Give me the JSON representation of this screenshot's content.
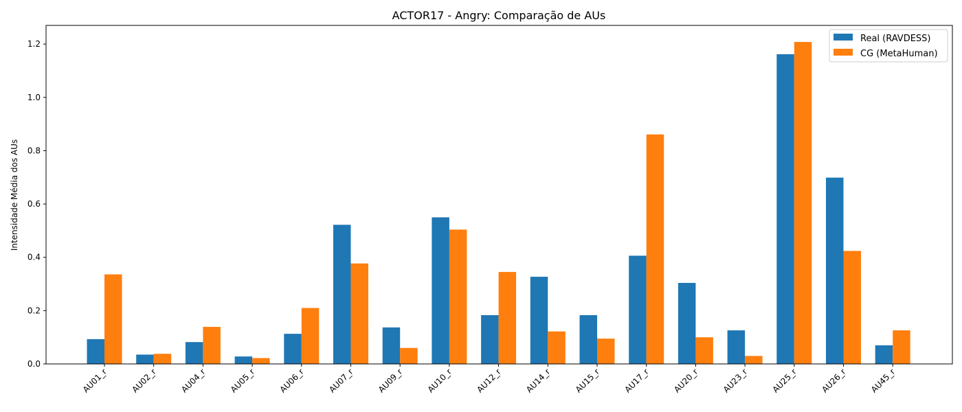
{
  "chart_data": {
    "type": "bar",
    "title": "ACTOR17 - Angry: Comparação de AUs",
    "xlabel": "",
    "ylabel": "Intensidade Média dos AUs",
    "categories": [
      "AU01_r",
      "AU02_r",
      "AU04_r",
      "AU05_r",
      "AU06_r",
      "AU07_r",
      "AU09_r",
      "AU10_r",
      "AU12_r",
      "AU14_r",
      "AU15_r",
      "AU17_r",
      "AU20_r",
      "AU23_r",
      "AU25_r",
      "AU26_r",
      "AU45_r"
    ],
    "series": [
      {
        "name": "Real (RAVDESS)",
        "color": "#1f77b4",
        "values": [
          0.093,
          0.035,
          0.082,
          0.028,
          0.113,
          0.522,
          0.137,
          0.55,
          0.183,
          0.327,
          0.183,
          0.406,
          0.304,
          0.126,
          1.162,
          0.699,
          0.07
        ]
      },
      {
        "name": "CG (MetaHuman)",
        "color": "#ff7f0e",
        "values": [
          0.336,
          0.038,
          0.139,
          0.022,
          0.21,
          0.377,
          0.06,
          0.504,
          0.345,
          0.122,
          0.095,
          0.861,
          0.1,
          0.03,
          1.208,
          0.424,
          0.126
        ]
      }
    ],
    "ylim": [
      0,
      1.27
    ],
    "yticks": [
      "0.0",
      "0.2",
      "0.4",
      "0.6",
      "0.8",
      "1.0",
      "1.2"
    ],
    "grid": false,
    "legend_position": "top-right"
  }
}
